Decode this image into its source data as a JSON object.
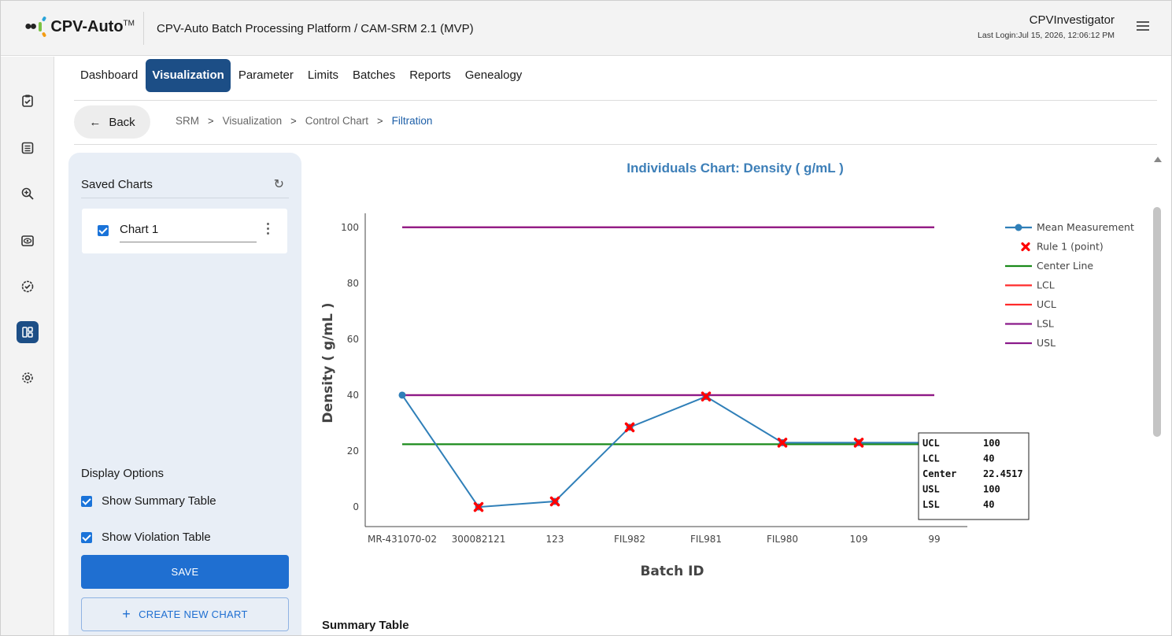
{
  "header": {
    "logo_text": "CPV-Auto",
    "logo_tm": "TM",
    "app_title": "CPV-Auto Batch Processing Platform / CAM-SRM 2.1 (MVP)",
    "user_name": "CPVInvestigator",
    "last_login": "Last Login:Jul 15, 2026, 12:06:12 PM",
    "menu_icon": "hamburger-menu-icon",
    "logo_colors": [
      "#2aa4d8",
      "#7ac143",
      "#f39c12"
    ]
  },
  "rail": {
    "items": [
      {
        "icon": "checkbox-clipboard-icon",
        "active": false
      },
      {
        "icon": "list-document-icon",
        "active": false
      },
      {
        "icon": "zoom-in-icon",
        "active": false
      },
      {
        "icon": "eye-icon",
        "active": false
      },
      {
        "icon": "badge-check-icon",
        "active": false
      },
      {
        "icon": "dashboard-layout-icon",
        "active": true
      },
      {
        "icon": "gear-icon",
        "active": false
      }
    ]
  },
  "tabs": [
    {
      "label": "Dashboard",
      "active": false
    },
    {
      "label": "Visualization",
      "active": true
    },
    {
      "label": "Parameter",
      "active": false
    },
    {
      "label": "Limits",
      "active": false
    },
    {
      "label": "Batches",
      "active": false
    },
    {
      "label": "Reports",
      "active": false
    },
    {
      "label": "Genealogy",
      "active": false
    }
  ],
  "breadcrumb": {
    "back_label": "Back",
    "items": [
      "SRM",
      "Visualization",
      "Control Chart",
      "Filtration"
    ]
  },
  "saved_panel": {
    "title": "Saved Charts",
    "charts": [
      {
        "name": "Chart 1",
        "checked": true
      }
    ],
    "display_options_title": "Display Options",
    "options": [
      {
        "label": "Show Summary Table",
        "checked": true
      },
      {
        "label": "Show Violation Table",
        "checked": true
      }
    ],
    "save_label": "SAVE",
    "create_label": "CREATE NEW CHART"
  },
  "chart_data": {
    "type": "line",
    "title": "Individuals Chart: Density ( g/mL )",
    "xlabel": "Batch ID",
    "ylabel": "Density ( g/mL )",
    "categories": [
      "MR-431070-02",
      "300082121",
      "123",
      "FIL982",
      "FIL981",
      "FIL980",
      "109",
      "99"
    ],
    "ylim": [
      -7,
      105
    ],
    "yticks": [
      0,
      20,
      40,
      60,
      80,
      100
    ],
    "series": [
      {
        "name": "Mean Measurement",
        "values": [
          40,
          0,
          2,
          28.5,
          39.5,
          23,
          23,
          23
        ],
        "color": "#2f7fb8"
      }
    ],
    "rule1_points": [
      1,
      2,
      3,
      4,
      5,
      6
    ],
    "rule1_name": "Rule 1 (point)",
    "rule1_color": "#ff0000",
    "lines": [
      {
        "name": "Center Line",
        "value": 22.4517,
        "color": "#1a8a1a"
      },
      {
        "name": "LCL",
        "value": 40,
        "color": "#ff2a2a"
      },
      {
        "name": "UCL",
        "value": 100,
        "color": "#ff2a2a"
      },
      {
        "name": "LSL",
        "value": 40,
        "color": "#8b1a8b"
      },
      {
        "name": "USL",
        "value": 100,
        "color": "#8b1a8b"
      }
    ],
    "tooltip": [
      {
        "label": "UCL",
        "value": "100"
      },
      {
        "label": "LCL",
        "value": "40"
      },
      {
        "label": "Center",
        "value": "22.4517"
      },
      {
        "label": "USL",
        "value": "100"
      },
      {
        "label": "LSL",
        "value": "40"
      }
    ],
    "grid": false,
    "legend_position": "top-right"
  },
  "summary_title": "Summary Table"
}
